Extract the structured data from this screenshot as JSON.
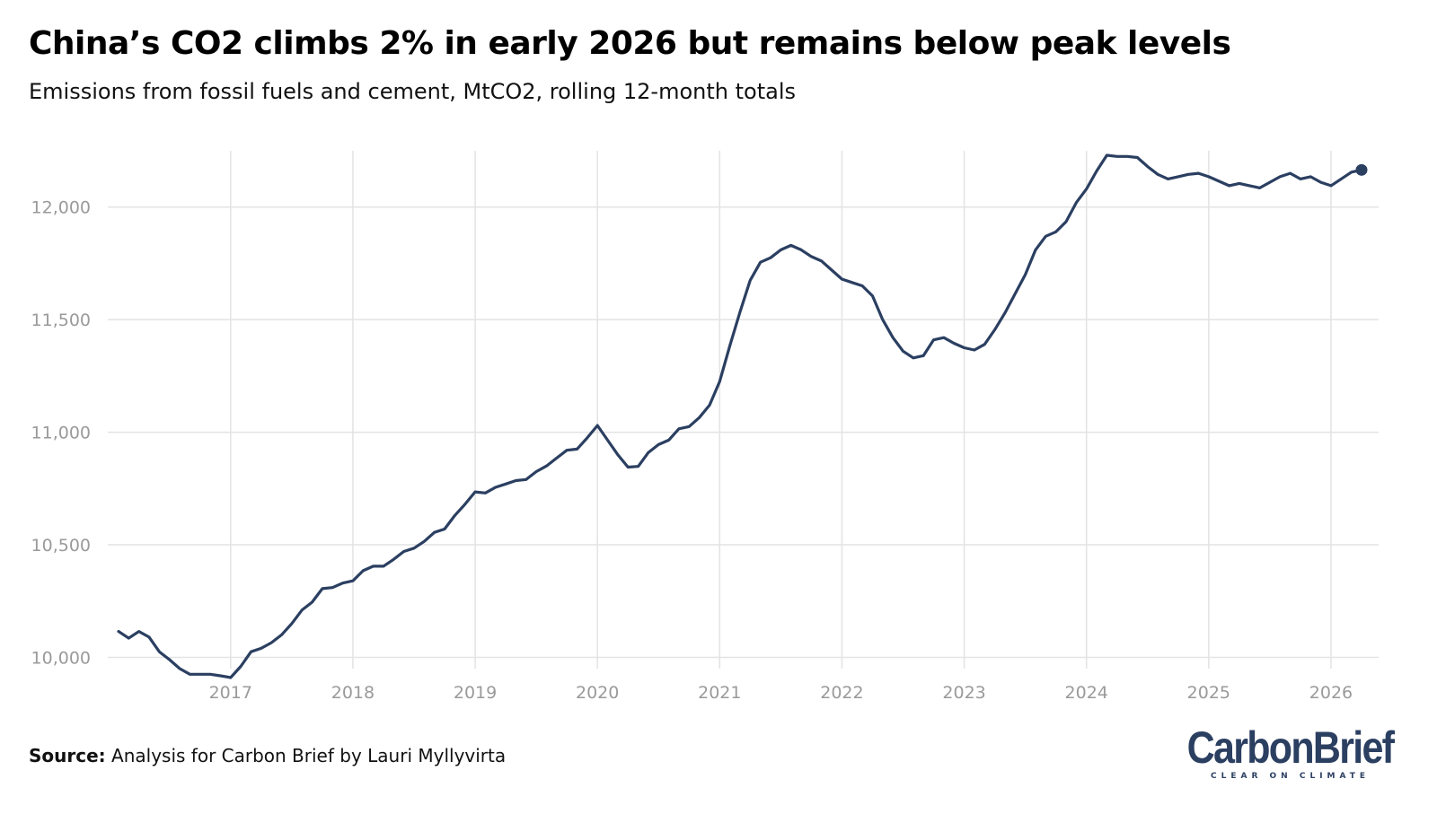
{
  "header": {
    "title": "China’s CO2 climbs 2% in early 2026 but remains below peak levels",
    "subtitle": "Emissions from fossil fuels and cement, MtCO2, rolling 12-month totals"
  },
  "footer": {
    "source_label": "Source:",
    "source_text": "Analysis for Carbon Brief by Lauri Myllyvirta"
  },
  "logo": {
    "name": "CarbonBrief",
    "tagline": "CLEAR ON CLIMATE"
  },
  "colors": {
    "line": "#2b3f61",
    "grid": "#e3e3e3",
    "tick_label": "#9a9a9a"
  },
  "chart_data": {
    "type": "line",
    "title": "China’s CO2 climbs 2% in early 2026 but remains below peak levels",
    "subtitle": "Emissions from fossil fuels and cement, MtCO2, rolling 12-month totals",
    "xlabel": "",
    "ylabel": "",
    "xlim": [
      "2016-02",
      "2026-04"
    ],
    "ylim": [
      9950,
      12250
    ],
    "grid": true,
    "x_ticks": [
      "2017",
      "2018",
      "2019",
      "2020",
      "2021",
      "2022",
      "2023",
      "2024",
      "2025",
      "2026"
    ],
    "y_ticks": [
      10000,
      10500,
      11000,
      11500,
      12000
    ],
    "y_tick_labels": [
      "10,000",
      "10,500",
      "11,000",
      "11,500",
      "12,000"
    ],
    "end_marker": true,
    "x": [
      "2016-02",
      "2016-03",
      "2016-04",
      "2016-05",
      "2016-06",
      "2016-07",
      "2016-08",
      "2016-09",
      "2016-10",
      "2016-11",
      "2016-12",
      "2017-01",
      "2017-02",
      "2017-03",
      "2017-04",
      "2017-05",
      "2017-06",
      "2017-07",
      "2017-08",
      "2017-09",
      "2017-10",
      "2017-11",
      "2017-12",
      "2018-01",
      "2018-02",
      "2018-03",
      "2018-04",
      "2018-05",
      "2018-06",
      "2018-07",
      "2018-08",
      "2018-09",
      "2018-10",
      "2018-11",
      "2018-12",
      "2019-01",
      "2019-02",
      "2019-03",
      "2019-04",
      "2019-05",
      "2019-06",
      "2019-07",
      "2019-08",
      "2019-09",
      "2019-10",
      "2019-11",
      "2019-12",
      "2020-01",
      "2020-02",
      "2020-03",
      "2020-04",
      "2020-05",
      "2020-06",
      "2020-07",
      "2020-08",
      "2020-09",
      "2020-10",
      "2020-11",
      "2020-12",
      "2021-01",
      "2021-02",
      "2021-03",
      "2021-04",
      "2021-05",
      "2021-06",
      "2021-07",
      "2021-08",
      "2021-09",
      "2021-10",
      "2021-11",
      "2021-12",
      "2022-01",
      "2022-02",
      "2022-03",
      "2022-04",
      "2022-05",
      "2022-06",
      "2022-07",
      "2022-08",
      "2022-09",
      "2022-10",
      "2022-11",
      "2022-12",
      "2023-01",
      "2023-02",
      "2023-03",
      "2023-04",
      "2023-05",
      "2023-06",
      "2023-07",
      "2023-08",
      "2023-09",
      "2023-10",
      "2023-11",
      "2023-12",
      "2024-01",
      "2024-02",
      "2024-03",
      "2024-04",
      "2024-05",
      "2024-06",
      "2024-07",
      "2024-08",
      "2024-09",
      "2024-10",
      "2024-11",
      "2024-12",
      "2025-01",
      "2025-02",
      "2025-03",
      "2025-04",
      "2025-05",
      "2025-06",
      "2025-07",
      "2025-08",
      "2025-09",
      "2025-10",
      "2025-11",
      "2025-12",
      "2026-01",
      "2026-02",
      "2026-03",
      "2026-04"
    ],
    "series": [
      {
        "values": [
          10115,
          10085,
          10115,
          10090,
          10025,
          9990,
          9950,
          9925,
          9925,
          9925,
          9918,
          9910,
          9960,
          10025,
          10040,
          10065,
          10100,
          10150,
          10210,
          10245,
          10305,
          10310,
          10330,
          10340,
          10385,
          10405,
          10405,
          10435,
          10470,
          10485,
          10515,
          10555,
          10570,
          10630,
          10680,
          10735,
          10730,
          10755,
          10770,
          10785,
          10790,
          10825,
          10850,
          10885,
          10920,
          10925,
          10975,
          11030,
          10965,
          10900,
          10845,
          10848,
          10910,
          10945,
          10965,
          11015,
          11025,
          11065,
          11120,
          11225,
          11385,
          11535,
          11675,
          11755,
          11775,
          11810,
          11830,
          11810,
          11780,
          11760,
          11720,
          11680,
          11665,
          11650,
          11605,
          11500,
          11420,
          11360,
          11330,
          11340,
          11410,
          11420,
          11395,
          11375,
          11365,
          11390,
          11455,
          11530,
          11615,
          11700,
          11810,
          11870,
          11890,
          11935,
          12020,
          12080,
          12160,
          12230,
          12225,
          12225,
          12220,
          12180,
          12145,
          12125,
          12135,
          12145,
          12150,
          12135,
          12115,
          12095,
          12105,
          12095,
          12085,
          12110,
          12135,
          12150,
          12125,
          12135,
          12110,
          12095,
          12125,
          12155,
          12165
        ]
      }
    ]
  }
}
